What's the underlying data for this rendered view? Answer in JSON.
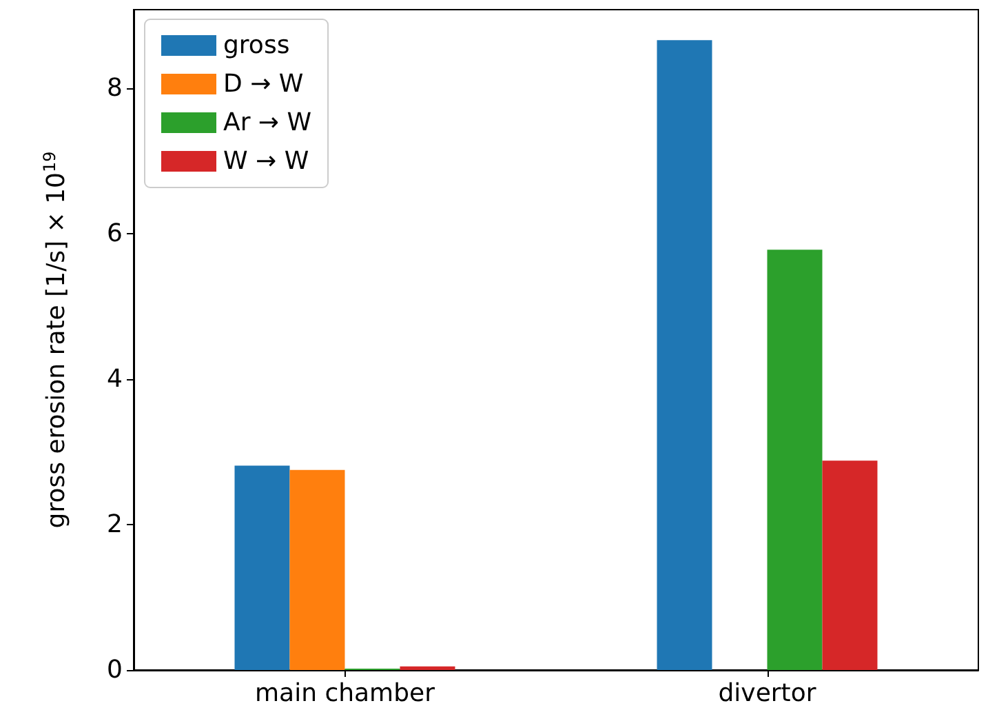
{
  "chart_data": {
    "type": "bar",
    "ylabel": "gross erosion rate [1/s] × 10$^{19}$",
    "categories": [
      "main chamber",
      "divertor"
    ],
    "series": [
      {
        "name": "gross",
        "color": "#1f77b4",
        "values": [
          2.81,
          8.66
        ]
      },
      {
        "name": "D → W",
        "color": "#ff7f0e",
        "values": [
          2.75,
          0
        ]
      },
      {
        "name": "Ar → W",
        "color": "#2ca02c",
        "values": [
          0.02,
          5.78
        ]
      },
      {
        "name": "W → W",
        "color": "#d62728",
        "values": [
          0.05,
          2.88
        ]
      }
    ],
    "ylim": [
      0,
      9.08
    ],
    "yticks": [
      0,
      2,
      4,
      6,
      8
    ],
    "grid": false,
    "legend": "top left"
  }
}
